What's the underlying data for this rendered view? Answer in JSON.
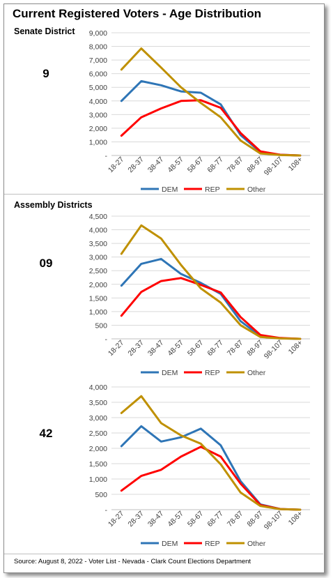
{
  "title": "Current Registered Voters - Age Distribution",
  "sections": {
    "senate_label": "Senate District",
    "assembly_label": "Assembly Districts"
  },
  "districts": [
    "9",
    "09",
    "42"
  ],
  "footer": "Source: August 8, 2022 - Voter List - Nevada - Clark Count Elections Department",
  "colors": {
    "DEM": "#2e75b6",
    "REP": "#ff0000",
    "Other": "#bf9000",
    "grid": "#d9d9d9"
  },
  "chart_data": [
    {
      "type": "line",
      "panel": "Senate District 9",
      "categories": [
        "18-27",
        "28-37",
        "38-47",
        "48-57",
        "58-67",
        "68-77",
        "78-87",
        "88-97",
        "98-107",
        "108+"
      ],
      "ylim": [
        0,
        9000
      ],
      "yticks": [
        "-",
        "1,000",
        "2,000",
        "3,000",
        "4,000",
        "5,000",
        "6,000",
        "7,000",
        "8,000",
        "9,000"
      ],
      "grid": true,
      "legend": "bottom",
      "series": [
        {
          "name": "DEM",
          "values": [
            4000,
            5450,
            5150,
            4700,
            4600,
            3750,
            1500,
            250,
            50,
            0
          ]
        },
        {
          "name": "REP",
          "values": [
            1450,
            2800,
            3450,
            4000,
            4050,
            3500,
            1650,
            300,
            50,
            0
          ]
        },
        {
          "name": "Other",
          "values": [
            6300,
            7850,
            6450,
            5000,
            3850,
            2800,
            1100,
            150,
            30,
            0
          ]
        }
      ]
    },
    {
      "type": "line",
      "panel": "Assembly District 09",
      "categories": [
        "18-27",
        "28-37",
        "38-47",
        "48-57",
        "58-67",
        "68-77",
        "78-87",
        "88-97",
        "98-107",
        "108+"
      ],
      "ylim": [
        0,
        4500
      ],
      "yticks": [
        "-",
        "500",
        "1,000",
        "1,500",
        "2,000",
        "2,500",
        "3,000",
        "3,500",
        "4,000",
        "4,500"
      ],
      "grid": true,
      "legend": "bottom",
      "series": [
        {
          "name": "DEM",
          "values": [
            1950,
            2750,
            2930,
            2380,
            2050,
            1650,
            650,
            100,
            20,
            0
          ]
        },
        {
          "name": "REP",
          "values": [
            850,
            1720,
            2120,
            2230,
            1980,
            1700,
            800,
            140,
            30,
            0
          ]
        },
        {
          "name": "Other",
          "values": [
            3120,
            4160,
            3680,
            2710,
            1850,
            1330,
            500,
            70,
            15,
            0
          ]
        }
      ]
    },
    {
      "type": "line",
      "panel": "Assembly District 42",
      "categories": [
        "18-27",
        "28-37",
        "38-47",
        "48-57",
        "58-67",
        "68-77",
        "78-87",
        "88-97",
        "98-107",
        "108+"
      ],
      "ylim": [
        0,
        4000
      ],
      "yticks": [
        "-",
        "500",
        "1,000",
        "1,500",
        "2,000",
        "2,500",
        "3,000",
        "3,500",
        "4,000"
      ],
      "grid": true,
      "legend": "bottom",
      "series": [
        {
          "name": "DEM",
          "values": [
            2070,
            2720,
            2220,
            2360,
            2640,
            2100,
            930,
            170,
            20,
            0
          ]
        },
        {
          "name": "REP",
          "values": [
            620,
            1100,
            1300,
            1730,
            2050,
            1730,
            850,
            150,
            20,
            0
          ]
        },
        {
          "name": "Other",
          "values": [
            3150,
            3700,
            2820,
            2420,
            2150,
            1480,
            560,
            120,
            15,
            0
          ]
        }
      ]
    }
  ]
}
